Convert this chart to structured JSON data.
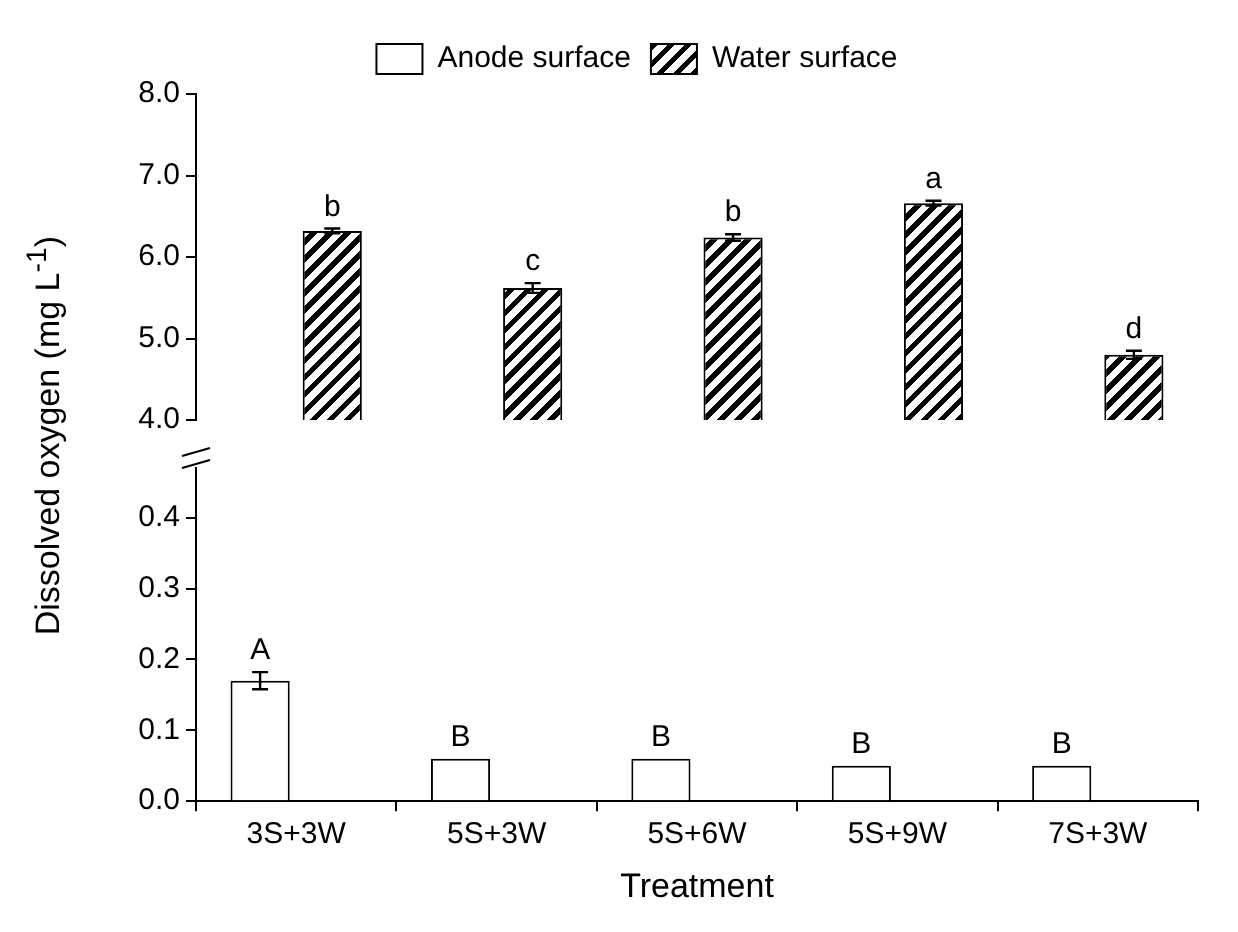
{
  "chart_data": [
    {
      "type": "bar",
      "ylabel": "Dissolved oxygen (mg L$^{-1}$)",
      "categories": [
        "3S+3W",
        "5S+3W",
        "5S+6W",
        "5S+9W",
        "7S+3W"
      ],
      "series": [
        {
          "name": "Anode surface",
          "color": "#ffffff",
          "values": [
            null,
            null,
            null,
            null,
            null
          ]
        },
        {
          "name": "Water surface",
          "color": "#000000",
          "values": [
            6.32,
            5.62,
            6.24,
            6.66,
            4.8
          ],
          "errors": [
            0.03,
            0.06,
            0.04,
            0.03,
            0.05
          ]
        }
      ],
      "ylim": [
        4,
        8
      ],
      "yticks": [
        {
          "value": 4,
          "label": "4.0"
        },
        {
          "value": 5,
          "label": "5.0"
        },
        {
          "value": 6,
          "label": "6.0"
        },
        {
          "value": 7,
          "label": "7.0"
        },
        {
          "value": 8,
          "label": "8.0"
        }
      ],
      "legend": "top",
      "tick_labels": "y",
      "annotations": [
        {
          "text": "b",
          "x": "3S+3W",
          "y": 6.35
        },
        {
          "text": "c",
          "x": "5S+3W",
          "y": 5.68
        },
        {
          "text": "b",
          "x": "5S+6W",
          "y": 6.28
        },
        {
          "text": "a",
          "x": "5S+9W",
          "y": 6.69
        },
        {
          "text": "d",
          "x": "7S+3W",
          "y": 4.85
        }
      ]
    },
    {
      "type": "bar",
      "xlabel": "Treatment",
      "categories": [
        "3S+3W",
        "5S+3W",
        "5S+6W",
        "5S+9W",
        "7S+3W"
      ],
      "series": [
        {
          "color": "#ffffff",
          "values": [
            0.17,
            0.06,
            0.06,
            0.05,
            0.05
          ],
          "errors": [
            0.012,
            null,
            null,
            null,
            null
          ]
        },
        {
          "color": "#000000",
          "values": [
            null,
            null,
            null,
            null,
            null
          ]
        }
      ],
      "ylim": [
        0,
        0.47
      ],
      "yticks": [
        {
          "value": 0,
          "label": "0.0"
        },
        {
          "value": 0.1,
          "label": "0.1"
        },
        {
          "value": 0.2,
          "label": "0.2"
        },
        {
          "value": 0.3,
          "label": "0.3"
        },
        {
          "value": 0.4,
          "label": "0.4"
        }
      ],
      "annotations": [
        "A",
        "B",
        "B",
        "B",
        "B"
      ]
    }
  ]
}
